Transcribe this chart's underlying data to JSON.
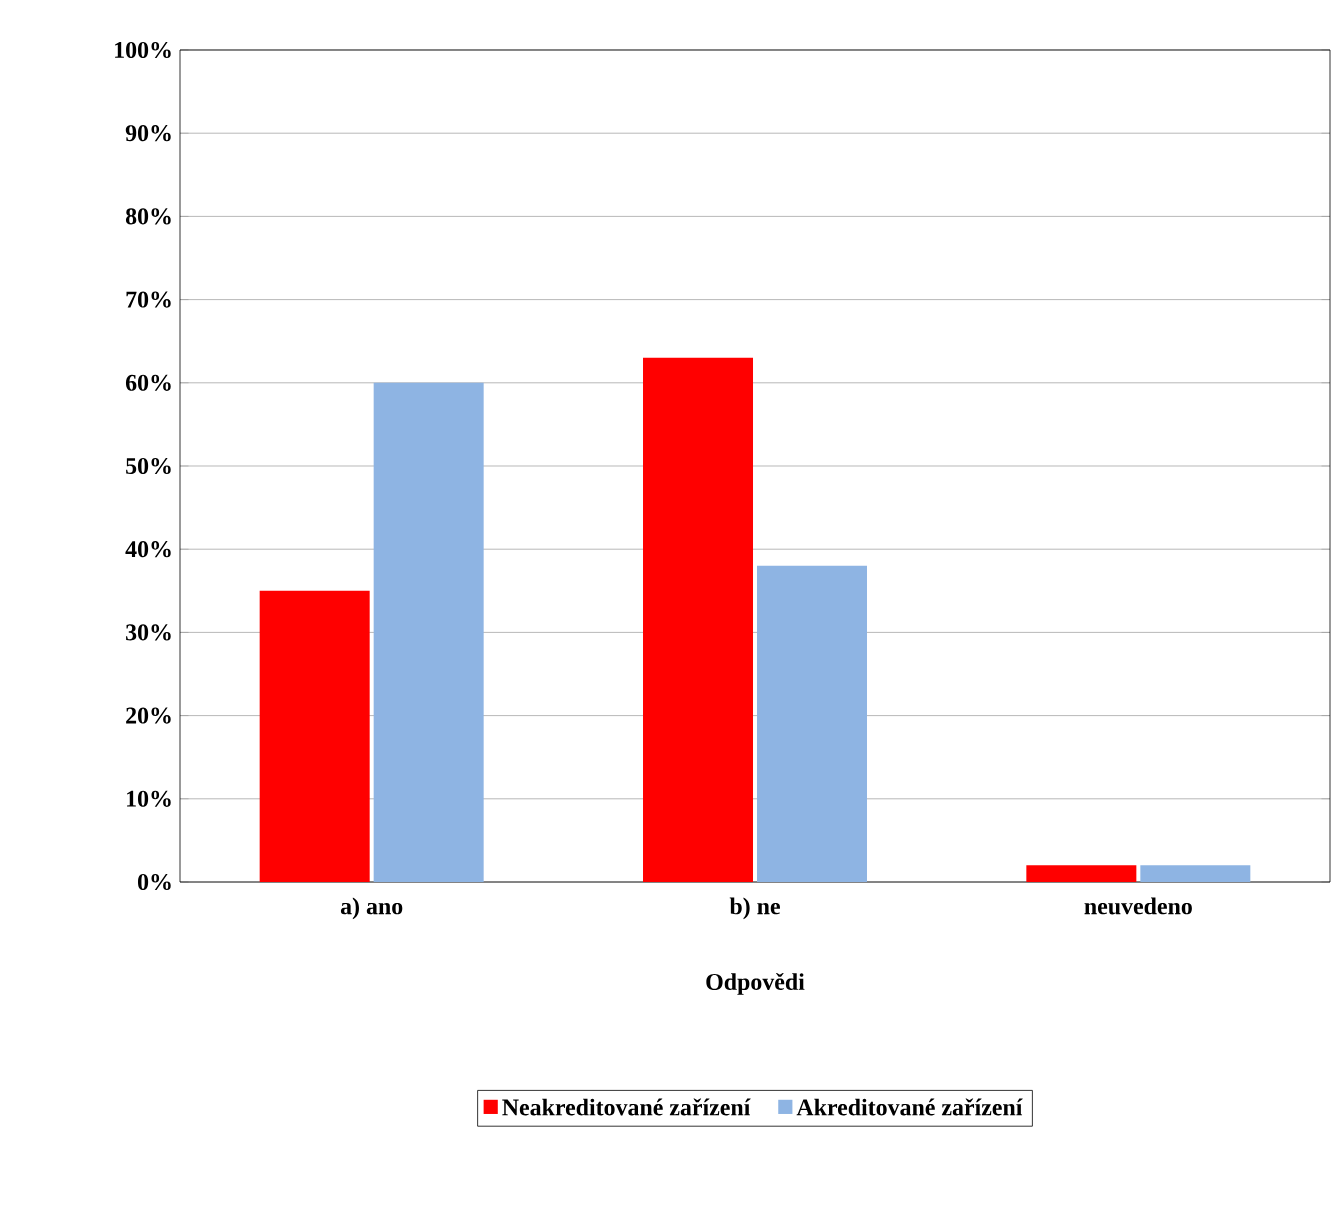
{
  "chart_data": {
    "type": "bar",
    "xlabel": "Odpovědi",
    "categories": [
      "a) ano",
      "b) ne",
      "neuvedeno"
    ],
    "series": [
      {
        "name": "Neakreditované zařízení",
        "color": "#ff0000",
        "values": [
          35,
          63,
          2
        ]
      },
      {
        "name": "Akreditované zařízení",
        "color": "#8eb4e3",
        "values": [
          60,
          38,
          2
        ]
      }
    ],
    "ylim": [
      0,
      100
    ],
    "yticks": [
      {
        "value": 0,
        "label": "0%"
      },
      {
        "value": 10,
        "label": "10%"
      },
      {
        "value": 20,
        "label": "20%"
      },
      {
        "value": 30,
        "label": "30%"
      },
      {
        "value": 40,
        "label": "40%"
      },
      {
        "value": 50,
        "label": "50%"
      },
      {
        "value": 60,
        "label": "60%"
      },
      {
        "value": 70,
        "label": "70%"
      },
      {
        "value": 80,
        "label": "80%"
      },
      {
        "value": 90,
        "label": "90%"
      },
      {
        "value": 100,
        "label": "100%"
      }
    ],
    "grid": "y",
    "legend": "bottom"
  }
}
